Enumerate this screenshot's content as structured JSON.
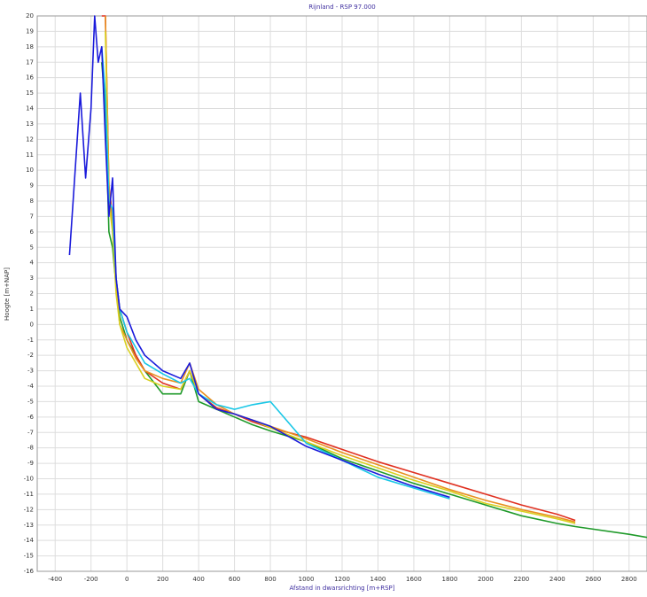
{
  "chart_data": {
    "type": "line",
    "title": "Rijnland - RSP 97.000",
    "x_label": "Afstand in dwarsrichting [m+RSP]",
    "y_label": "Hoogte [m+NAP]",
    "x": [
      -320,
      -300,
      -260,
      -230,
      -200,
      -180,
      -160,
      -140,
      -120,
      -100,
      -80,
      -60,
      -40,
      0,
      50,
      100,
      200,
      300,
      350,
      400,
      500,
      600,
      700,
      800,
      1000,
      1200,
      1400,
      1600,
      1800,
      2000,
      2200,
      2400,
      2500,
      2800,
      2900
    ],
    "series": [
      {
        "color": "#1f9a2a",
        "values": [
          null,
          null,
          null,
          null,
          null,
          null,
          null,
          17,
          14,
          6,
          5,
          2.5,
          0.5,
          -1,
          -2,
          -3,
          -4.5,
          -4.5,
          -3,
          -5,
          -5.5,
          -6,
          -6.5,
          -6.9,
          -7.6,
          -8.7,
          -9.5,
          -10.3,
          -11,
          -11.7,
          -12.4,
          -12.9,
          -13.1,
          -13.6,
          -13.8
        ]
      },
      {
        "color": "#e03020",
        "values": [
          null,
          null,
          null,
          null,
          null,
          null,
          null,
          20,
          20,
          9,
          7,
          3,
          1,
          -0.5,
          -2,
          -3,
          -3.8,
          -4.2,
          -3,
          -4.5,
          -5.4,
          -5.8,
          -6.3,
          -6.7,
          -7.3,
          -8.1,
          -8.9,
          -9.6,
          -10.3,
          -11,
          -11.7,
          -12.3,
          -12.7,
          null,
          null
        ]
      },
      {
        "color": "#e89020",
        "values": [
          null,
          null,
          null,
          null,
          null,
          null,
          null,
          null,
          20,
          9,
          6.5,
          2.5,
          0,
          -1,
          -2.2,
          -3,
          -3.5,
          -3.8,
          -2.5,
          -4.2,
          -5.2,
          -5.8,
          -6.2,
          -6.6,
          -7.4,
          -8.3,
          -9.1,
          -9.9,
          -10.7,
          -11.4,
          -12,
          -12.5,
          -12.8,
          null,
          null
        ]
      },
      {
        "color": "#d8d020",
        "values": [
          null,
          null,
          null,
          null,
          null,
          null,
          null,
          null,
          19,
          8,
          6,
          2,
          0,
          -1.5,
          -2.5,
          -3.5,
          -4,
          -4.2,
          -3,
          -4.5,
          -5.5,
          -5.8,
          -6.2,
          -6.7,
          -7.6,
          -8.5,
          -9.3,
          -10.1,
          -10.8,
          -11.6,
          -12.1,
          -12.6,
          -12.9,
          null,
          null
        ]
      },
      {
        "color": "#19c7e6",
        "values": [
          null,
          null,
          null,
          null,
          null,
          null,
          null,
          18,
          15,
          8,
          7.5,
          3,
          1,
          -0.5,
          -1.5,
          -2.5,
          -3.2,
          -3.8,
          -3.5,
          -4.5,
          -5.2,
          -5.5,
          -5.2,
          -5,
          -7.7,
          -8.8,
          -9.9,
          -10.6,
          -11.3,
          null,
          null,
          null,
          null,
          null,
          null
        ]
      },
      {
        "color": "#1a1adb",
        "values": [
          4.5,
          8,
          15,
          9.5,
          14,
          20,
          17,
          18,
          12,
          7,
          9.5,
          3,
          1,
          0.5,
          -1,
          -2,
          -3,
          -3.5,
          -2.5,
          -4.5,
          -5.5,
          -5.8,
          -6.2,
          -6.6,
          -7.9,
          -8.8,
          -9.7,
          -10.5,
          -11.2,
          null,
          null,
          null,
          null,
          null,
          null
        ]
      }
    ],
    "xlim": [
      -500,
      2900
    ],
    "xticks": [
      -400,
      -200,
      0,
      200,
      400,
      600,
      800,
      1000,
      1200,
      1400,
      1600,
      1800,
      2000,
      2200,
      2400,
      2600,
      2800
    ],
    "ylim": [
      -16,
      20
    ],
    "yticks": [
      -16,
      -15,
      -14,
      -13,
      -12,
      -11,
      -10,
      -9,
      -8,
      -7,
      -6,
      -5,
      -4,
      -3,
      -2,
      -1,
      0,
      1,
      2,
      3,
      4,
      5,
      6,
      7,
      8,
      9,
      10,
      11,
      12,
      13,
      14,
      15,
      16,
      17,
      18,
      19,
      20
    ],
    "grid": true
  }
}
